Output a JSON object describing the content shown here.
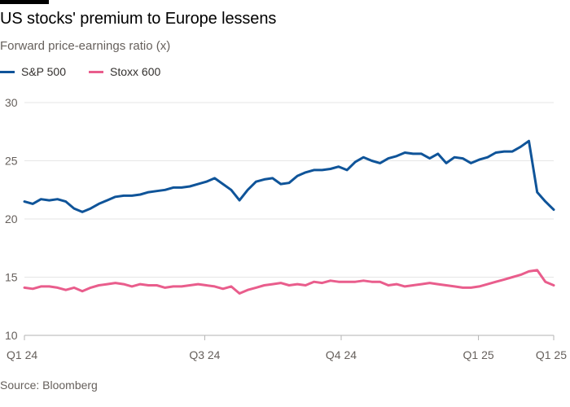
{
  "header": {
    "title": "US stocks' premium to Europe lessens",
    "subtitle": "Forward price-earnings ratio (x)"
  },
  "footer": {
    "source": "Source: Bloomberg"
  },
  "colors": {
    "sp500": "#0f5499",
    "stoxx600": "#e95d8c",
    "grid": "#e6e6e6",
    "axis": "#66605c"
  },
  "chart_data": {
    "type": "line",
    "title": "US stocks' premium to Europe lessens",
    "subtitle": "Forward price-earnings ratio (x)",
    "xlabel": "",
    "ylabel": "Forward price-earnings ratio (x)",
    "ylim": [
      10,
      30
    ],
    "yticks": [
      10,
      15,
      20,
      25,
      30
    ],
    "xlim": [
      0,
      64
    ],
    "xticks": [
      {
        "x": 0,
        "label": "Q1 24"
      },
      {
        "x": 21.8,
        "label": "Q3 24"
      },
      {
        "x": 38.3,
        "label": "Q4 24"
      },
      {
        "x": 54.9,
        "label": "Q1 25"
      },
      {
        "x": 64,
        "label": "Q1 25"
      }
    ],
    "grid": true,
    "legend": "top-left",
    "series": [
      {
        "name": "S&P 500",
        "color": "#0f5499",
        "x": [
          0,
          1,
          2,
          3,
          4,
          5,
          6,
          7,
          8,
          9,
          10,
          11,
          12,
          13,
          14,
          15,
          16,
          17,
          18,
          19,
          20,
          21,
          22,
          23,
          24,
          25,
          26,
          27,
          28,
          29,
          30,
          31,
          32,
          33,
          34,
          35,
          36,
          37,
          38,
          39,
          40,
          41,
          42,
          43,
          44,
          45,
          46,
          47,
          48,
          49,
          50,
          51,
          52,
          53,
          54,
          55,
          56,
          57,
          58,
          59,
          60,
          61,
          62,
          63,
          64
        ],
        "values": [
          21.5,
          21.3,
          21.7,
          21.6,
          21.7,
          21.5,
          20.9,
          20.6,
          20.9,
          21.3,
          21.6,
          21.9,
          22.0,
          22.0,
          22.1,
          22.3,
          22.4,
          22.5,
          22.7,
          22.7,
          22.8,
          23.0,
          23.2,
          23.5,
          23.0,
          22.5,
          21.6,
          22.5,
          23.2,
          23.4,
          23.5,
          23.0,
          23.1,
          23.7,
          24.0,
          24.2,
          24.2,
          24.3,
          24.5,
          24.2,
          24.9,
          25.3,
          25.0,
          24.8,
          25.2,
          25.4,
          25.7,
          25.6,
          25.6,
          25.2,
          25.6,
          24.8,
          25.3,
          25.2,
          24.8,
          25.1,
          25.3,
          25.7,
          25.8,
          25.8,
          26.2,
          26.7,
          22.3,
          21.5,
          20.8
        ]
      },
      {
        "name": "Stoxx 600",
        "color": "#e95d8c",
        "x": [
          0,
          1,
          2,
          3,
          4,
          5,
          6,
          7,
          8,
          9,
          10,
          11,
          12,
          13,
          14,
          15,
          16,
          17,
          18,
          19,
          20,
          21,
          22,
          23,
          24,
          25,
          26,
          27,
          28,
          29,
          30,
          31,
          32,
          33,
          34,
          35,
          36,
          37,
          38,
          39,
          40,
          41,
          42,
          43,
          44,
          45,
          46,
          47,
          48,
          49,
          50,
          51,
          52,
          53,
          54,
          55,
          56,
          57,
          58,
          59,
          60,
          61,
          62,
          63,
          64
        ],
        "values": [
          14.1,
          14.0,
          14.2,
          14.2,
          14.1,
          13.9,
          14.1,
          13.8,
          14.1,
          14.3,
          14.4,
          14.5,
          14.4,
          14.2,
          14.4,
          14.3,
          14.3,
          14.1,
          14.2,
          14.2,
          14.3,
          14.4,
          14.3,
          14.2,
          14.0,
          14.2,
          13.6,
          13.9,
          14.1,
          14.3,
          14.4,
          14.5,
          14.3,
          14.4,
          14.3,
          14.6,
          14.5,
          14.7,
          14.6,
          14.6,
          14.6,
          14.7,
          14.6,
          14.6,
          14.3,
          14.4,
          14.2,
          14.3,
          14.4,
          14.5,
          14.4,
          14.3,
          14.2,
          14.1,
          14.1,
          14.2,
          14.4,
          14.6,
          14.8,
          15.0,
          15.2,
          15.5,
          15.6,
          14.6,
          14.3
        ]
      }
    ]
  },
  "source": "Source: Bloomberg"
}
